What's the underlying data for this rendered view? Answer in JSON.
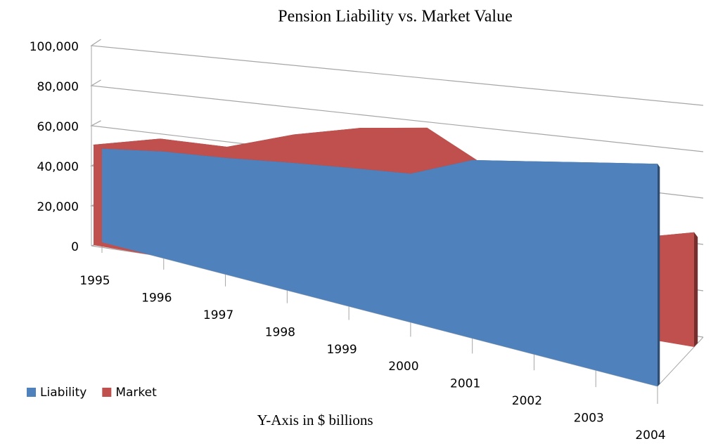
{
  "chart_data": {
    "type": "area3d",
    "title": "Pension Liability vs. Market Value",
    "x_label": "Y-Axis in $ billions",
    "categories": [
      "1995",
      "1996",
      "1997",
      "1998",
      "1999",
      "2000",
      "2001",
      "2002",
      "2003",
      "2004"
    ],
    "series": [
      {
        "name": "Liability",
        "color": "#4f81bd",
        "values": [
          46000,
          45000,
          43000,
          42000,
          41000,
          40000,
          44000,
          44000,
          44000,
          44000
        ]
      },
      {
        "name": "Market",
        "color": "#c0504d",
        "values": [
          50000,
          56000,
          55000,
          63000,
          68000,
          70000,
          55000,
          42000,
          35000,
          40000
        ]
      }
    ],
    "ylim": [
      0,
      100000
    ],
    "yticks": [
      0,
      {
        "value": 20000,
        "label": "20,000"
      },
      {
        "value": 40000,
        "label": "40,000"
      },
      {
        "value": 60000,
        "label": "60,000"
      },
      {
        "value": 80000,
        "label": "80,000"
      },
      {
        "value": 100000,
        "label": "100,000"
      }
    ],
    "grid": true,
    "legend": "bottom-left"
  }
}
